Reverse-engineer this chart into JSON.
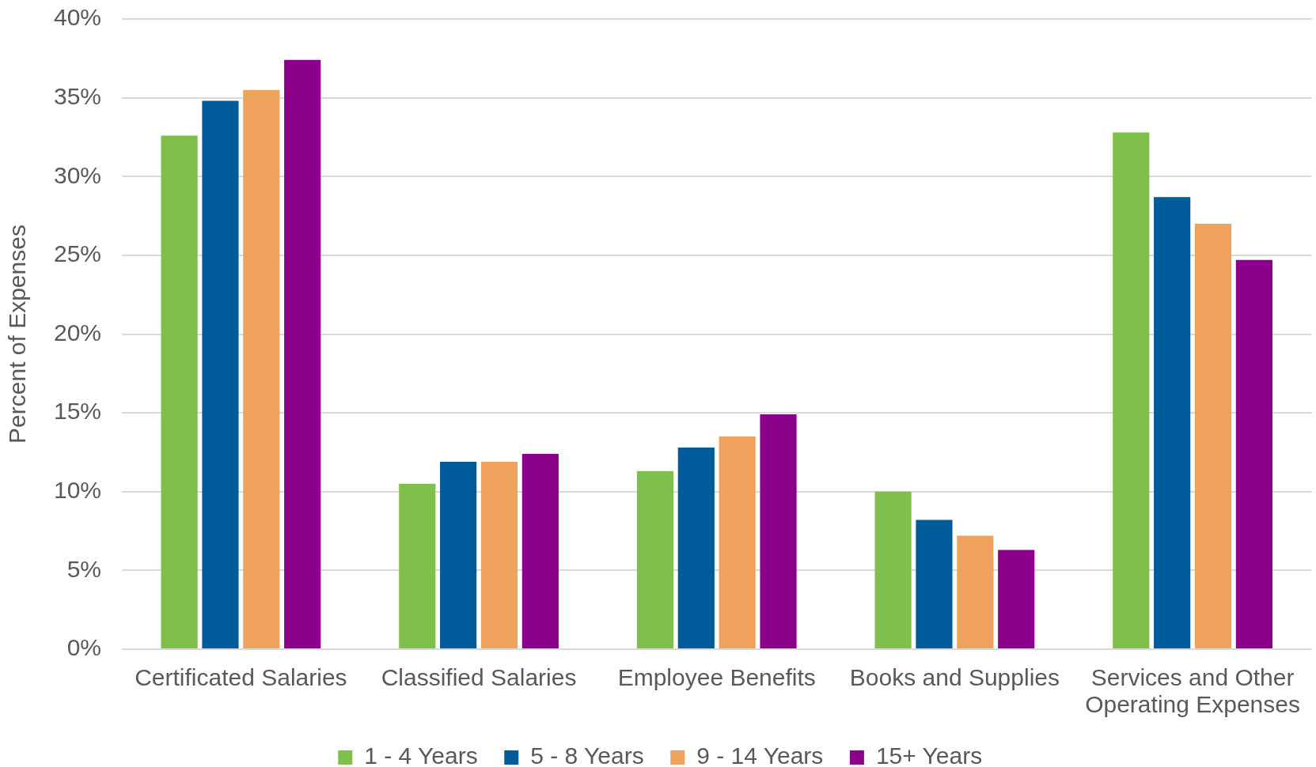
{
  "chart_data": {
    "type": "bar",
    "ylabel": "Percent of Expenses",
    "categories": [
      "Certificated Salaries",
      "Classified Salaries",
      "Employee Benefits",
      "Books and Supplies",
      "Services and Other Operating Expenses"
    ],
    "series": [
      {
        "name": "1 - 4 Years",
        "color": "#7fbf4b",
        "values": [
          32.6,
          10.5,
          11.3,
          10.0,
          32.8
        ]
      },
      {
        "name": "5 - 8 Years",
        "color": "#005b9a",
        "values": [
          34.8,
          11.9,
          12.8,
          8.2,
          28.7
        ]
      },
      {
        "name": "9 - 14 Years",
        "color": "#eea25c",
        "values": [
          35.5,
          11.9,
          13.5,
          7.2,
          27.0
        ]
      },
      {
        "name": "15+ Years",
        "color": "#8b008b",
        "values": [
          37.4,
          12.4,
          14.9,
          6.3,
          24.7
        ]
      }
    ],
    "ylim": [
      0,
      40
    ],
    "yticks": [
      {
        "value": 0,
        "label": "0%"
      },
      {
        "value": 5,
        "label": "5%"
      },
      {
        "value": 10,
        "label": "10%"
      },
      {
        "value": 15,
        "label": "15%"
      },
      {
        "value": 20,
        "label": "20%"
      },
      {
        "value": 25,
        "label": "25%"
      },
      {
        "value": 30,
        "label": "30%"
      },
      {
        "value": 35,
        "label": "35%"
      },
      {
        "value": 40,
        "label": "40%"
      }
    ],
    "grid": "y",
    "legend": "bottom"
  }
}
